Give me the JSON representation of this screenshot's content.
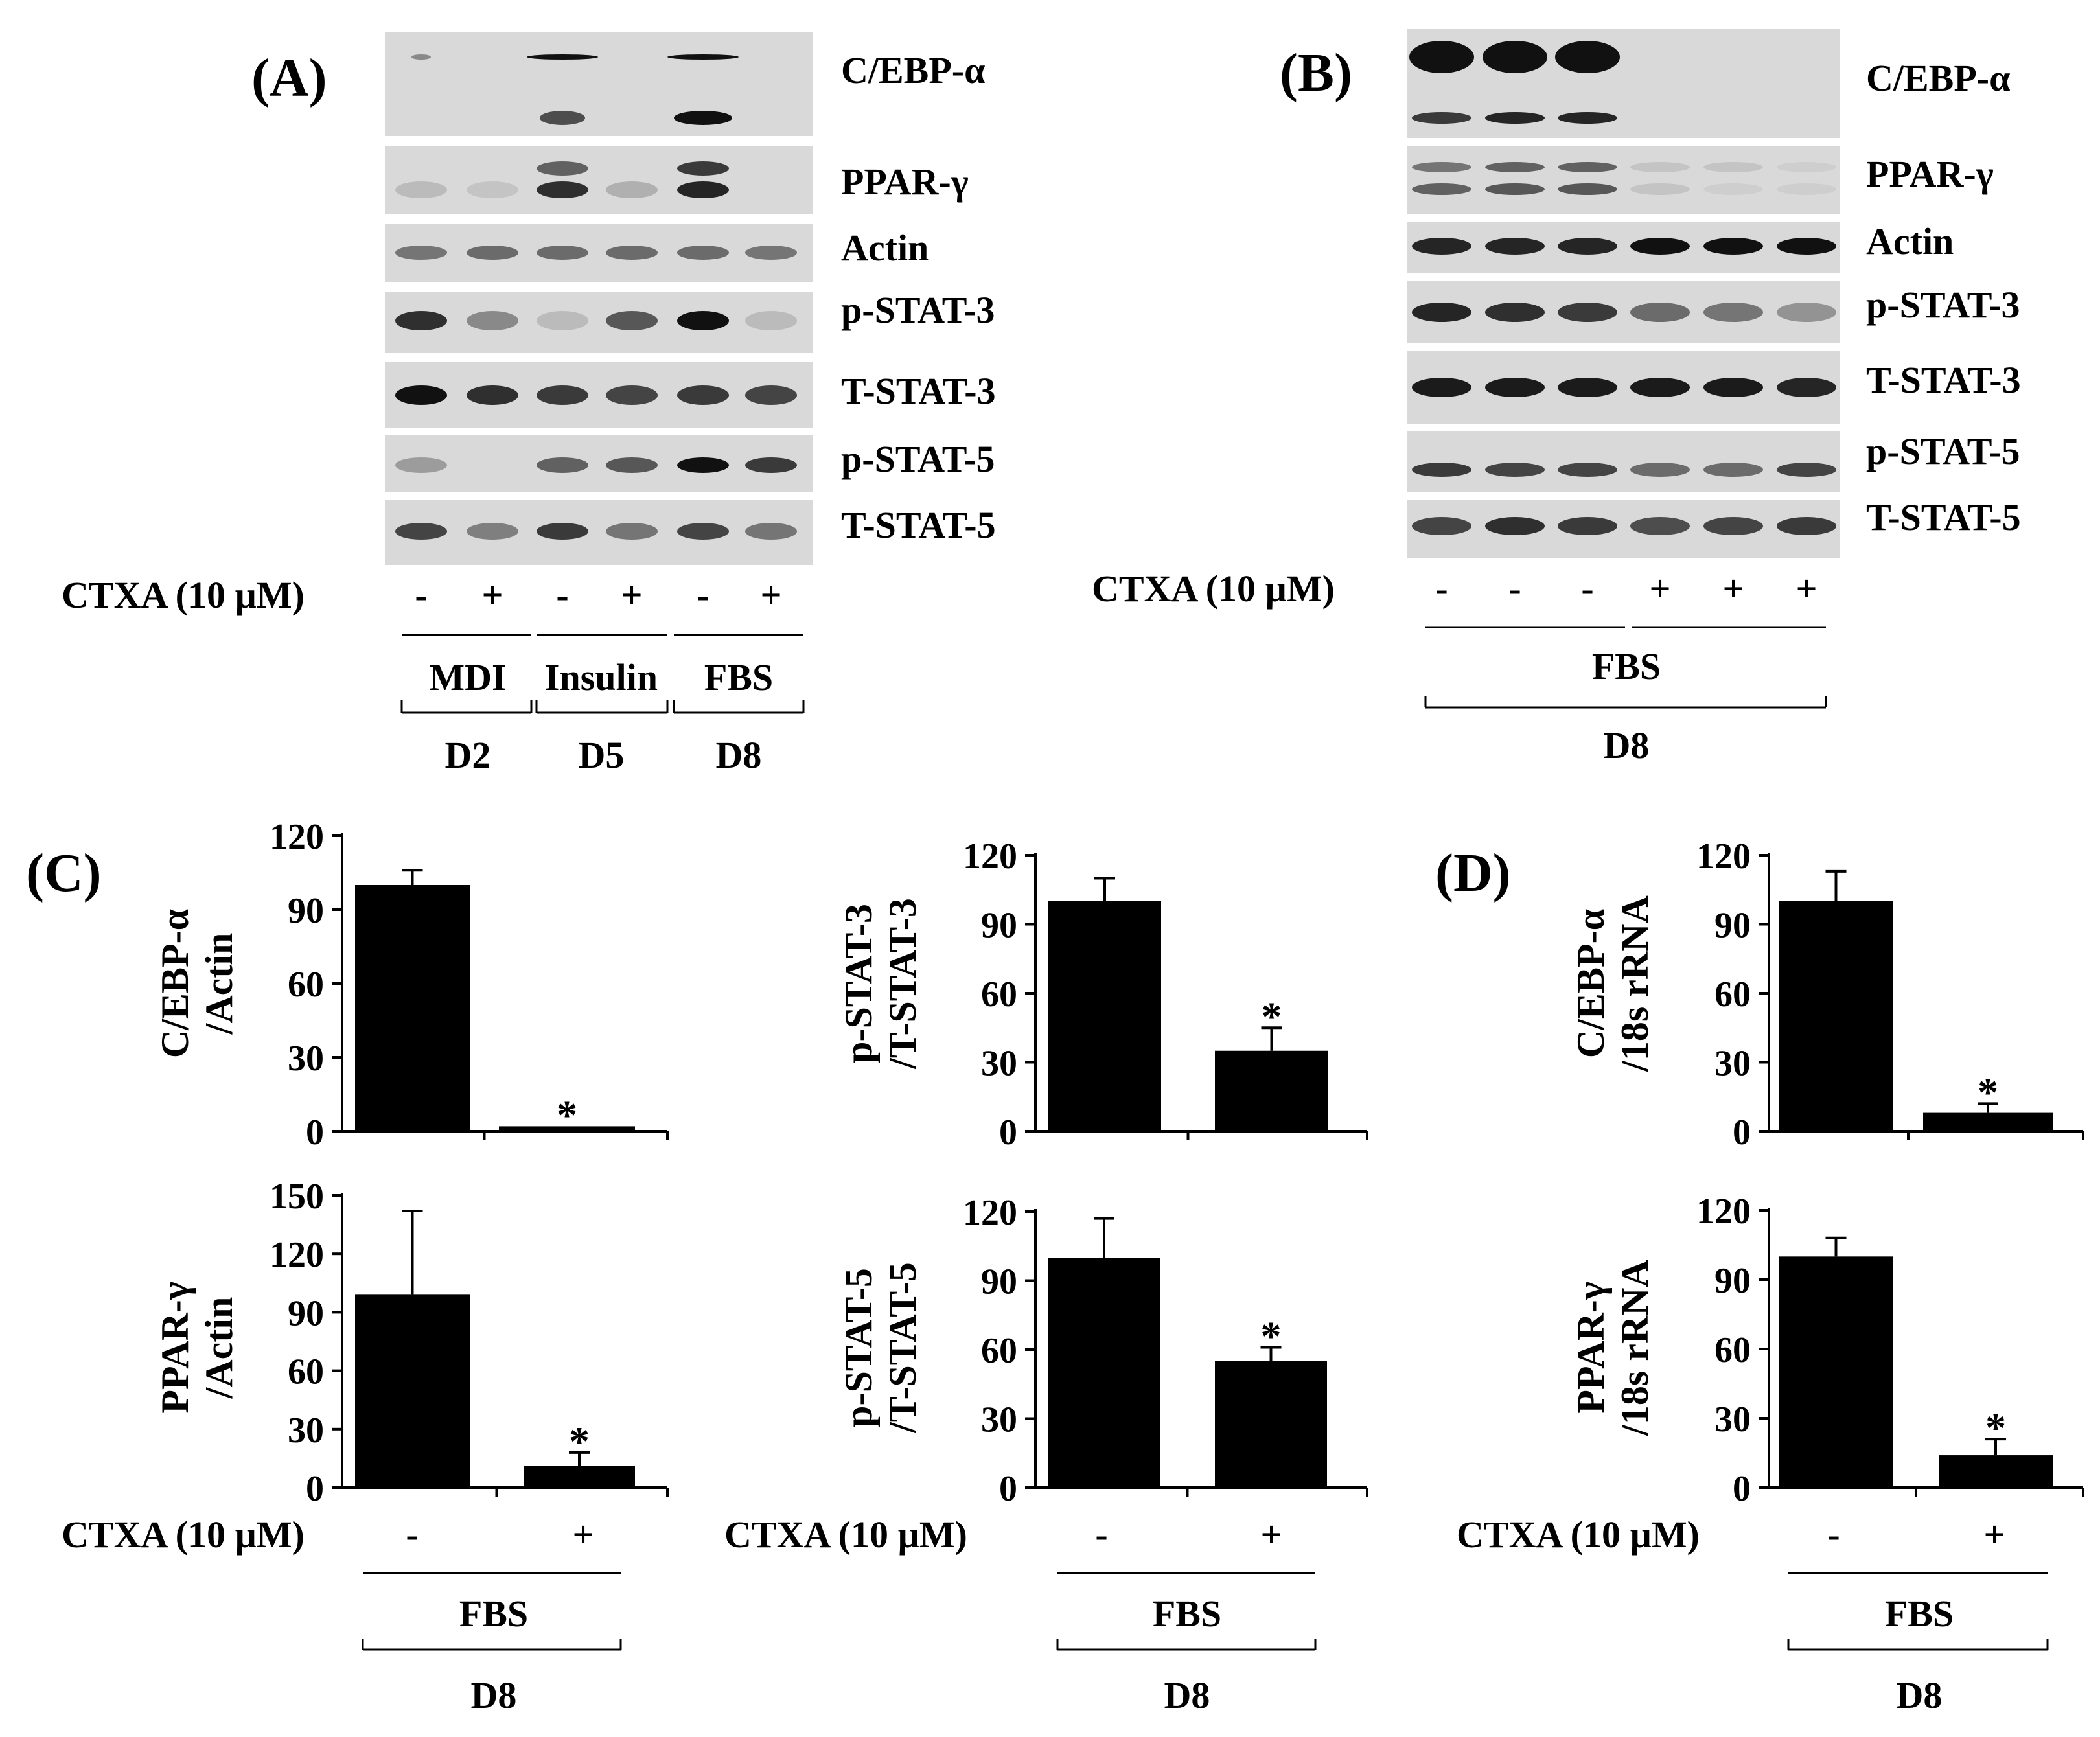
{
  "colors": {
    "ink": "#000000",
    "blot_bg": "#d9d9d9",
    "band": "#111111",
    "bar": "#000000"
  },
  "panel_a": {
    "label": "(A)",
    "proteins": [
      "C/EBP-α",
      "PPAR-γ",
      "Actin",
      "p-STAT-3",
      "T-STAT-3",
      "p-STAT-5",
      "T-STAT-5"
    ],
    "treatment_label": "CTXA (10 µM)",
    "signs": [
      "-",
      "+",
      "-",
      "+",
      "-",
      "+"
    ],
    "groups": [
      "MDI",
      "Insulin",
      "FBS"
    ],
    "days": [
      "D2",
      "D5",
      "D8"
    ]
  },
  "panel_b": {
    "label": "(B)",
    "proteins": [
      "C/EBP-α",
      "PPAR-γ",
      "Actin",
      "p-STAT-3",
      "T-STAT-3",
      "p-STAT-5",
      "T-STAT-5"
    ],
    "treatment_label": "CTXA (10 µM)",
    "signs": [
      "-",
      "-",
      "-",
      "+",
      "+",
      "+"
    ],
    "group": "FBS",
    "day": "D8"
  },
  "panel_c": {
    "label": "(C)"
  },
  "panel_d": {
    "label": "(D)"
  },
  "chart_data": [
    {
      "type": "bar",
      "panel": "C",
      "ylabel": [
        "C/EBP-α",
        "/Actin"
      ],
      "categories": [
        "-",
        "+"
      ],
      "values": [
        100,
        2
      ],
      "errors": [
        6,
        0
      ],
      "significant": [
        false,
        true
      ],
      "ylim": [
        0,
        120
      ],
      "ticks": [
        "0",
        "30",
        "60",
        "90",
        "120"
      ]
    },
    {
      "type": "bar",
      "panel": "C",
      "ylabel": [
        "PPAR-γ",
        "/Actin"
      ],
      "categories": [
        "-",
        "+"
      ],
      "values": [
        99,
        11
      ],
      "errors": [
        43,
        7
      ],
      "significant": [
        false,
        true
      ],
      "ylim": [
        0,
        150
      ],
      "ticks": [
        "0",
        "30",
        "60",
        "90",
        "120",
        "150"
      ],
      "xlabel": "CTXA (10 µM)",
      "group": "FBS",
      "day": "D8"
    },
    {
      "type": "bar",
      "panel": "C",
      "ylabel": [
        "p-STAT-3",
        "/T-STAT-3"
      ],
      "categories": [
        "-",
        "+"
      ],
      "values": [
        100,
        35
      ],
      "errors": [
        10,
        10
      ],
      "significant": [
        false,
        true
      ],
      "ylim": [
        0,
        120
      ],
      "ticks": [
        "0",
        "30",
        "60",
        "90",
        "120"
      ]
    },
    {
      "type": "bar",
      "panel": "C",
      "ylabel": [
        "p-STAT-5",
        "/T-STAT-5"
      ],
      "categories": [
        "-",
        "+"
      ],
      "values": [
        100,
        55
      ],
      "errors": [
        17,
        6
      ],
      "significant": [
        false,
        true
      ],
      "ylim": [
        0,
        120
      ],
      "ticks": [
        "0",
        "30",
        "60",
        "90",
        "120"
      ],
      "xlabel": "CTXA (10 µM)",
      "group": "FBS",
      "day": "D8"
    },
    {
      "type": "bar",
      "panel": "D",
      "ylabel": [
        "C/EBP-α",
        "/18s rRNA"
      ],
      "categories": [
        "-",
        "+"
      ],
      "values": [
        100,
        8
      ],
      "errors": [
        13,
        4
      ],
      "significant": [
        false,
        true
      ],
      "ylim": [
        0,
        120
      ],
      "ticks": [
        "0",
        "30",
        "60",
        "90",
        "120"
      ]
    },
    {
      "type": "bar",
      "panel": "D",
      "ylabel": [
        "PPAR-γ",
        "/18s rRNA"
      ],
      "categories": [
        "-",
        "+"
      ],
      "values": [
        100,
        14
      ],
      "errors": [
        8,
        7
      ],
      "significant": [
        false,
        true
      ],
      "ylim": [
        0,
        120
      ],
      "ticks": [
        "0",
        "30",
        "60",
        "90",
        "120"
      ],
      "xlabel": "CTXA (10 µM)",
      "group": "FBS",
      "day": "D8"
    }
  ]
}
